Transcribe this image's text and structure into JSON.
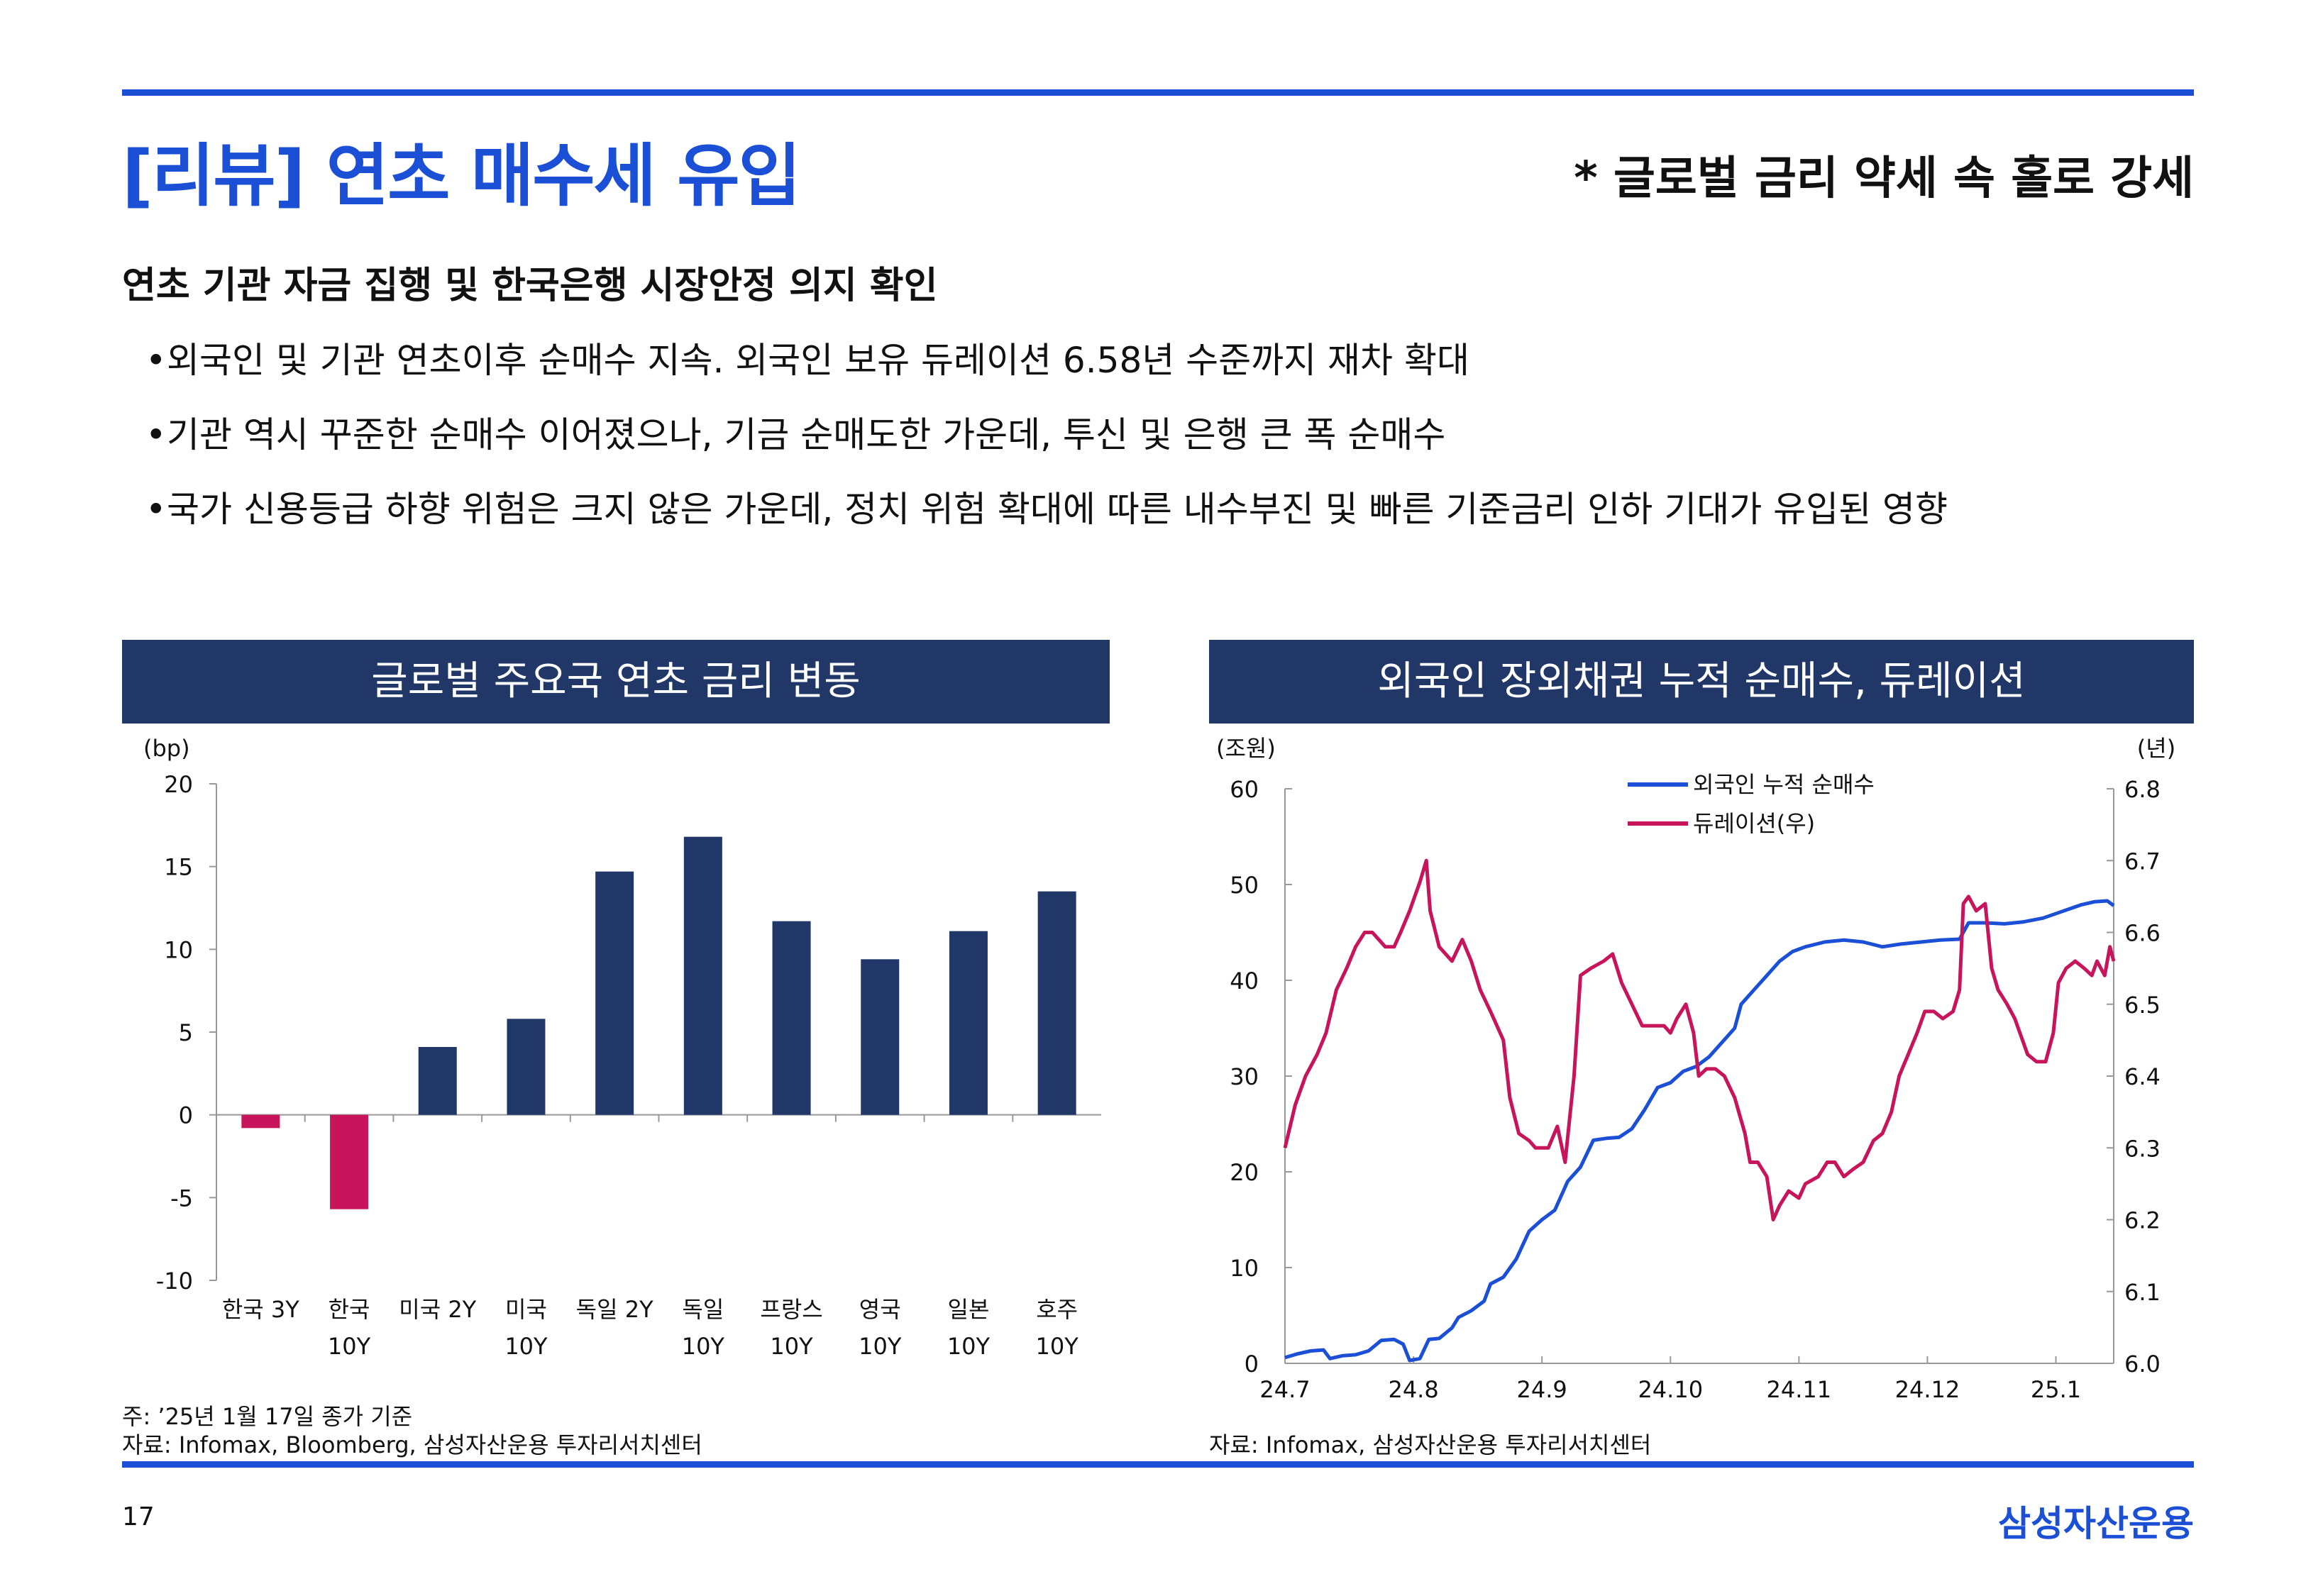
{
  "header": {
    "title": "[리뷰] 연초 매수세 유입",
    "subtitle": "* 글로벌 금리 약세 속 홀로 강세"
  },
  "body": {
    "lead": "연초 기관 자금 집행 및 한국은행 시장안정 의지 확인",
    "bullets": [
      "외국인 및 기관 연초이후 순매수 지속. 외국인 보유 듀레이션 6.58년 수준까지 재차 확대",
      "기관 역시 꾸준한 순매수 이어졌으나, 기금 순매도한 가운데, 투신 및 은행 큰 폭 순매수",
      "국가 신용등급 하향 위험은 크지 않은 가운데, 정치 위험 확대에 따른 내수부진 및 빠른 기준금리 인하 기대가 유입된 영향"
    ],
    "bullet_symbol": "•"
  },
  "left_panel": {
    "heading": "글로벌 주요국 연초 금리 변동",
    "note": "주: ’25년 1월 17일 종가 기준",
    "source": "자료: Infomax, Bloomberg, 삼성자산운용 투자리서치센터"
  },
  "right_panel": {
    "heading": "외국인 장외채권 누적 순매수, 듀레이션",
    "source": "자료: Infomax, 삼성자산운용 투자리서치센터"
  },
  "footer": {
    "page": "17",
    "brand": "삼성자산운용"
  },
  "colors": {
    "accent": "#1a4fd6",
    "navy": "#203768",
    "negative": "#c8145a",
    "line_blue": "#1a4fd6",
    "line_pink": "#c8145a"
  },
  "chart_data": [
    {
      "type": "bar",
      "title": "글로벌 주요국 연초 금리 변동",
      "ylabel": "(bp)",
      "ylim": [
        -10,
        20
      ],
      "yticks": [
        20,
        15,
        10,
        5,
        0,
        -5,
        -10
      ],
      "categories": [
        [
          "한국 3Y"
        ],
        [
          "한국",
          "10Y"
        ],
        [
          "미국 2Y"
        ],
        [
          "미국",
          "10Y"
        ],
        [
          "독일 2Y"
        ],
        [
          "독일",
          "10Y"
        ],
        [
          "프랑스",
          "10Y"
        ],
        [
          "영국",
          "10Y"
        ],
        [
          "일본",
          "10Y"
        ],
        [
          "호주",
          "10Y"
        ]
      ],
      "values": [
        -0.8,
        -5.7,
        4.1,
        5.8,
        14.7,
        16.8,
        11.7,
        9.4,
        11.1,
        13.5
      ]
    },
    {
      "type": "line",
      "title": "외국인 장외채권 누적 순매수, 듀레이션",
      "ylabel_left": "(조원)",
      "ylabel_right": "(년)",
      "ylim_left": [
        0,
        60
      ],
      "ylim_right": [
        6.0,
        6.8
      ],
      "yticks_left": [
        60,
        50,
        40,
        30,
        20,
        10,
        0
      ],
      "yticks_right": [
        "6.8",
        "6.7",
        "6.6",
        "6.5",
        "6.4",
        "6.3",
        "6.2",
        "6.1",
        "6.0"
      ],
      "x_ticks": [
        "24.7",
        "24.8",
        "24.9",
        "24.10",
        "24.11",
        "24.12",
        "25.1"
      ],
      "x_range": [
        0,
        6.45
      ],
      "series": [
        {
          "name": "외국인 누적 순매수",
          "axis": "left",
          "points": [
            [
              0,
              0.6
            ],
            [
              0.1,
              1.0
            ],
            [
              0.2,
              1.3
            ],
            [
              0.3,
              1.4
            ],
            [
              0.35,
              0.5
            ],
            [
              0.45,
              0.8
            ],
            [
              0.55,
              0.9
            ],
            [
              0.65,
              1.3
            ],
            [
              0.75,
              2.4
            ],
            [
              0.85,
              2.5
            ],
            [
              0.92,
              2.0
            ],
            [
              0.97,
              0.3
            ],
            [
              1.05,
              0.5
            ],
            [
              1.12,
              2.5
            ],
            [
              1.2,
              2.6
            ],
            [
              1.3,
              3.7
            ],
            [
              1.35,
              4.8
            ],
            [
              1.45,
              5.5
            ],
            [
              1.55,
              6.5
            ],
            [
              1.6,
              8.3
            ],
            [
              1.7,
              9.0
            ],
            [
              1.8,
              10.9
            ],
            [
              1.9,
              13.8
            ],
            [
              2.0,
              15.0
            ],
            [
              2.1,
              16.0
            ],
            [
              2.2,
              19.0
            ],
            [
              2.3,
              20.5
            ],
            [
              2.4,
              23.3
            ],
            [
              2.5,
              23.5
            ],
            [
              2.6,
              23.6
            ],
            [
              2.7,
              24.5
            ],
            [
              2.8,
              26.5
            ],
            [
              2.9,
              28.8
            ],
            [
              3.0,
              29.3
            ],
            [
              3.1,
              30.5
            ],
            [
              3.2,
              31.0
            ],
            [
              3.3,
              32.0
            ],
            [
              3.4,
              33.5
            ],
            [
              3.5,
              35.0
            ],
            [
              3.55,
              37.5
            ],
            [
              3.65,
              39.0
            ],
            [
              3.75,
              40.5
            ],
            [
              3.85,
              42.0
            ],
            [
              3.95,
              43.0
            ],
            [
              4.05,
              43.5
            ],
            [
              4.2,
              44.0
            ],
            [
              4.35,
              44.2
            ],
            [
              4.5,
              44.0
            ],
            [
              4.65,
              43.5
            ],
            [
              4.8,
              43.8
            ],
            [
              4.95,
              44.0
            ],
            [
              5.1,
              44.2
            ],
            [
              5.25,
              44.3
            ],
            [
              5.32,
              46.0
            ],
            [
              5.45,
              46.0
            ],
            [
              5.6,
              45.9
            ],
            [
              5.75,
              46.1
            ],
            [
              5.9,
              46.5
            ],
            [
              6.05,
              47.2
            ],
            [
              6.2,
              47.9
            ],
            [
              6.3,
              48.2
            ],
            [
              6.4,
              48.3
            ],
            [
              6.45,
              47.8
            ]
          ]
        },
        {
          "name": "듀레이션(우)",
          "axis": "right",
          "points": [
            [
              0,
              6.3
            ],
            [
              0.08,
              6.36
            ],
            [
              0.16,
              6.4
            ],
            [
              0.25,
              6.43
            ],
            [
              0.32,
              6.46
            ],
            [
              0.4,
              6.52
            ],
            [
              0.48,
              6.55
            ],
            [
              0.55,
              6.58
            ],
            [
              0.62,
              6.6
            ],
            [
              0.68,
              6.6
            ],
            [
              0.73,
              6.59
            ],
            [
              0.78,
              6.58
            ],
            [
              0.85,
              6.58
            ],
            [
              0.9,
              6.6
            ],
            [
              0.97,
              6.63
            ],
            [
              1.05,
              6.67
            ],
            [
              1.1,
              6.7
            ],
            [
              1.13,
              6.63
            ],
            [
              1.2,
              6.58
            ],
            [
              1.3,
              6.56
            ],
            [
              1.38,
              6.59
            ],
            [
              1.45,
              6.56
            ],
            [
              1.52,
              6.52
            ],
            [
              1.6,
              6.49
            ],
            [
              1.7,
              6.45
            ],
            [
              1.75,
              6.37
            ],
            [
              1.82,
              6.32
            ],
            [
              1.9,
              6.31
            ],
            [
              1.95,
              6.3
            ],
            [
              2.0,
              6.3
            ],
            [
              2.05,
              6.3
            ],
            [
              2.12,
              6.33
            ],
            [
              2.18,
              6.28
            ],
            [
              2.25,
              6.4
            ],
            [
              2.3,
              6.54
            ],
            [
              2.38,
              6.55
            ],
            [
              2.48,
              6.56
            ],
            [
              2.55,
              6.57
            ],
            [
              2.62,
              6.53
            ],
            [
              2.7,
              6.5
            ],
            [
              2.78,
              6.47
            ],
            [
              2.85,
              6.47
            ],
            [
              2.95,
              6.47
            ],
            [
              3.0,
              6.46
            ],
            [
              3.05,
              6.48
            ],
            [
              3.12,
              6.5
            ],
            [
              3.18,
              6.46
            ],
            [
              3.22,
              6.4
            ],
            [
              3.28,
              6.41
            ],
            [
              3.35,
              6.41
            ],
            [
              3.42,
              6.4
            ],
            [
              3.5,
              6.37
            ],
            [
              3.58,
              6.32
            ],
            [
              3.62,
              6.28
            ],
            [
              3.68,
              6.28
            ],
            [
              3.75,
              6.26
            ],
            [
              3.8,
              6.2
            ],
            [
              3.85,
              6.22
            ],
            [
              3.92,
              6.24
            ],
            [
              4.0,
              6.23
            ],
            [
              4.05,
              6.25
            ],
            [
              4.15,
              6.26
            ],
            [
              4.22,
              6.28
            ],
            [
              4.28,
              6.28
            ],
            [
              4.35,
              6.26
            ],
            [
              4.42,
              6.27
            ],
            [
              4.5,
              6.28
            ],
            [
              4.58,
              6.31
            ],
            [
              4.65,
              6.32
            ],
            [
              4.72,
              6.35
            ],
            [
              4.78,
              6.4
            ],
            [
              4.85,
              6.43
            ],
            [
              4.92,
              6.46
            ],
            [
              4.98,
              6.49
            ],
            [
              5.05,
              6.49
            ],
            [
              5.12,
              6.48
            ],
            [
              5.2,
              6.49
            ],
            [
              5.25,
              6.52
            ],
            [
              5.28,
              6.64
            ],
            [
              5.32,
              6.65
            ],
            [
              5.38,
              6.63
            ],
            [
              5.45,
              6.64
            ],
            [
              5.5,
              6.55
            ],
            [
              5.55,
              6.52
            ],
            [
              5.62,
              6.5
            ],
            [
              5.68,
              6.48
            ],
            [
              5.72,
              6.46
            ],
            [
              5.78,
              6.43
            ],
            [
              5.85,
              6.42
            ],
            [
              5.92,
              6.42
            ],
            [
              5.98,
              6.46
            ],
            [
              6.02,
              6.53
            ],
            [
              6.08,
              6.55
            ],
            [
              6.15,
              6.56
            ],
            [
              6.22,
              6.55
            ],
            [
              6.28,
              6.54
            ],
            [
              6.32,
              6.56
            ],
            [
              6.38,
              6.54
            ],
            [
              6.42,
              6.58
            ],
            [
              6.45,
              6.56
            ]
          ]
        }
      ]
    }
  ]
}
